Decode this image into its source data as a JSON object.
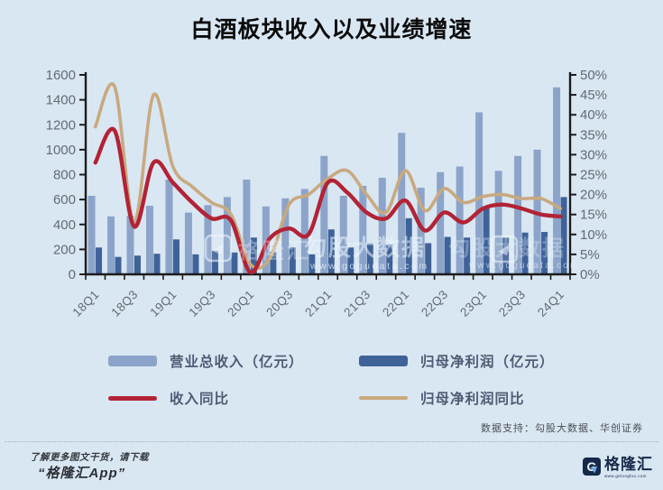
{
  "header": {
    "title": "白酒板块收入以及业绩增速"
  },
  "chart_data": {
    "type": "bar",
    "subtype": "combo bar+line, dual axis",
    "categories": [
      "18Q1",
      "18Q2",
      "18Q3",
      "18Q4",
      "19Q1",
      "19Q2",
      "19Q3",
      "19Q4",
      "20Q1",
      "20Q2",
      "20Q3",
      "20Q4",
      "21Q1",
      "21Q2",
      "21Q3",
      "21Q4",
      "22Q1",
      "22Q2",
      "22Q3",
      "22Q4",
      "23Q1",
      "23Q2",
      "23Q3",
      "23Q4",
      "24Q1"
    ],
    "x_label_every": 2,
    "series": [
      {
        "name": "营业总收入（亿元）",
        "type": "bar",
        "axis": "left",
        "color": "#8ca4c9",
        "values": [
          630,
          465,
          470,
          550,
          760,
          495,
          555,
          620,
          760,
          545,
          610,
          685,
          950,
          630,
          710,
          775,
          1135,
          695,
          820,
          865,
          1300,
          830,
          950,
          1000,
          1500
        ]
      },
      {
        "name": "归母净利润（亿元）",
        "type": "bar",
        "axis": "left",
        "color": "#3f6298",
        "values": [
          215,
          140,
          150,
          165,
          280,
          160,
          190,
          175,
          295,
          180,
          215,
          160,
          360,
          215,
          250,
          240,
          450,
          250,
          300,
          295,
          530,
          295,
          335,
          340,
          620
        ]
      },
      {
        "name": "收入同比",
        "type": "line",
        "axis": "right",
        "color": "#b22335",
        "values": [
          28,
          36,
          12,
          28,
          23,
          18,
          14,
          13.5,
          0.5,
          9,
          11.5,
          10,
          23,
          20.5,
          15.5,
          14,
          18.5,
          11,
          15.5,
          13,
          16.5,
          17.5,
          16.5,
          15,
          14.5
        ]
      },
      {
        "name": "归母净利润同比",
        "type": "line",
        "axis": "right",
        "color": "#c9a97f",
        "values": [
          37,
          47,
          13,
          45,
          27,
          22,
          18,
          15,
          2.5,
          4,
          17.5,
          20,
          24,
          26,
          20,
          15.5,
          26,
          16,
          21.5,
          18,
          19.5,
          20,
          19,
          19,
          16.5
        ]
      }
    ],
    "left_axis": {
      "min": 0,
      "max": 1600,
      "step": 200,
      "suffix": ""
    },
    "right_axis": {
      "min": 0,
      "max": 50,
      "step": 5,
      "suffix": "%"
    },
    "grid": false,
    "legend_position": "bottom",
    "title": "白酒板块收入以及业绩增速"
  },
  "watermark": {
    "brand": "格隆汇",
    "site_name": "勾股大数据",
    "site_url": "www.gogudata.com"
  },
  "source": {
    "text": "数据支持：勾股大数据、华创证券"
  },
  "footer": {
    "note_line1": "了解更多图文干货，请下载",
    "note_line2": "“格隆汇App”",
    "logo_letter": "G",
    "logo_text": "格隆汇",
    "logo_url": "www.gelonghui.com"
  },
  "colors": {
    "background": "#d9e7f3",
    "axis": "#1c1c1c",
    "tick_label": "#636b73",
    "revenue_bar": "#8ca4c9",
    "profit_bar": "#3f6298",
    "revenue_yoy_line": "#b22335",
    "profit_yoy_line": "#c9a97f"
  }
}
